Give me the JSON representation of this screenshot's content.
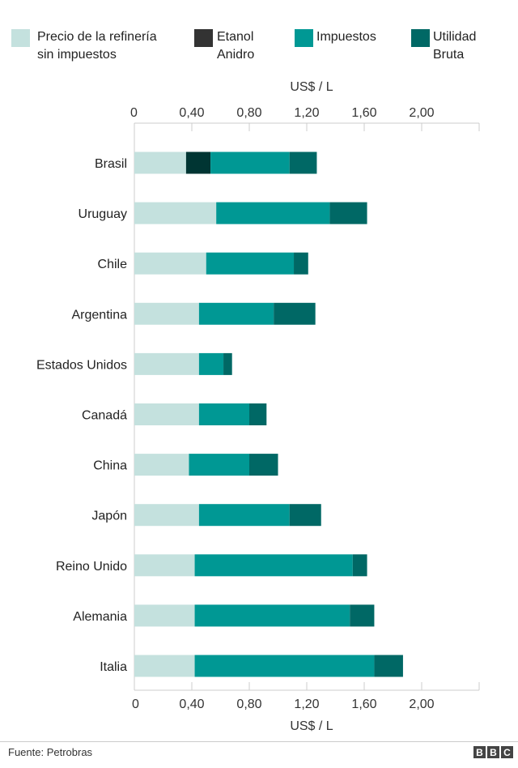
{
  "chart_data": {
    "type": "bar",
    "orientation": "horizontal",
    "stacked": true,
    "xlabel": "US$ / L",
    "xlim": [
      0,
      2.4
    ],
    "xticks": [
      "0",
      "0,40",
      "0,80",
      "1,20",
      "1,60",
      "2,00"
    ],
    "xtick_values": [
      0,
      0.4,
      0.8,
      1.2,
      1.6,
      2.0
    ],
    "grid": false,
    "legend_placement": "top",
    "categories": [
      "Brasil",
      "Uruguay",
      "Chile",
      "Argentina",
      "Estados Unidos",
      "Canadá",
      "China",
      "Japón",
      "Reino Unido",
      "Alemania",
      "Italia"
    ],
    "series": [
      {
        "name": "Precio de la refinería sin impuestos",
        "name_lines": [
          "Precio de la refinería",
          "sin impuestos"
        ],
        "color": "#c4e1de",
        "legend_color": "#c4e1de",
        "values": [
          0.36,
          0.57,
          0.5,
          0.45,
          0.45,
          0.45,
          0.38,
          0.45,
          0.42,
          0.42,
          0.42
        ]
      },
      {
        "name": "Etanol Anidro",
        "name_lines": [
          "Etanol",
          "Anidro"
        ],
        "color": "#003533",
        "legend_color": "#333333",
        "values": [
          0.17,
          0,
          0,
          0,
          0,
          0,
          0,
          0,
          0,
          0,
          0
        ]
      },
      {
        "name": "Impuestos",
        "name_lines": [
          "Impuestos"
        ],
        "color": "#009894",
        "legend_color": "#009894",
        "values": [
          0.55,
          0.79,
          0.61,
          0.52,
          0.17,
          0.35,
          0.42,
          0.63,
          1.1,
          1.08,
          1.25
        ]
      },
      {
        "name": "Utilidad Bruta",
        "name_lines": [
          "Utilidad",
          "Bruta"
        ],
        "color": "#006865",
        "legend_color": "#006865",
        "values": [
          0.19,
          0.26,
          0.1,
          0.29,
          0.06,
          0.12,
          0.2,
          0.22,
          0.1,
          0.17,
          0.2
        ]
      }
    ]
  },
  "footer": {
    "source": "Fuente: Petrobras",
    "logo": "BBC"
  }
}
